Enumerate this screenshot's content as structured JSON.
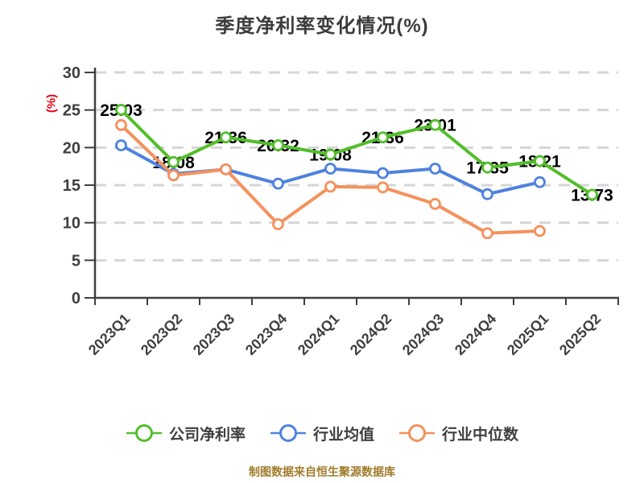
{
  "title": "季度净利率变化情况(%)",
  "y_axis_unit": "(%)",
  "footer": "制图数据来自恒生聚源数据库",
  "colors": {
    "title_text": "#3c3c3c",
    "axis": "#3f3f3f",
    "tick_label": "#3f3f3f",
    "gridline": "#d6d6d6",
    "unit_label": "#e60012",
    "data_label": "#000000",
    "footer_text": "#a07c2b",
    "marker_fill": "#ffffff"
  },
  "chart_data": {
    "type": "line",
    "title": "季度净利率变化情况(%)",
    "categories": [
      "2023Q1",
      "2023Q2",
      "2023Q3",
      "2023Q4",
      "2024Q1",
      "2024Q2",
      "2024Q3",
      "2024Q4",
      "2025Q1",
      "2025Q2"
    ],
    "series": [
      {
        "name": "公司净利率",
        "color": "#52be2b",
        "show_labels": true,
        "values": [
          25.03,
          18.08,
          21.36,
          20.32,
          19.08,
          21.36,
          23.01,
          17.35,
          18.21,
          13.73
        ],
        "labels": [
          "25.03",
          "18.08",
          "21.36",
          "20.32",
          "19.08",
          "21.36",
          "23.01",
          "17.35",
          "18.21",
          "13.73"
        ]
      },
      {
        "name": "行业均值",
        "color": "#4e82df",
        "show_labels": false,
        "values": [
          20.3,
          16.5,
          17.1,
          15.2,
          17.2,
          16.6,
          17.2,
          13.8,
          15.4,
          null
        ],
        "labels": []
      },
      {
        "name": "行业中位数",
        "color": "#f5915c",
        "show_labels": false,
        "values": [
          23.0,
          16.3,
          17.1,
          9.8,
          14.8,
          14.7,
          12.5,
          8.6,
          8.9,
          null
        ],
        "labels": []
      }
    ],
    "ylabel": "(%)",
    "ylim": [
      0,
      30
    ],
    "ytick_step": 5,
    "yticks": [
      0,
      5,
      10,
      15,
      20,
      25,
      30
    ],
    "grid": "dashed-horizontal",
    "legend_position": "bottom",
    "x_label_rotation": -45
  },
  "legend": {
    "items": [
      {
        "label": "公司净利率",
        "color": "#52be2b"
      },
      {
        "label": "行业均值",
        "color": "#4e82df"
      },
      {
        "label": "行业中位数",
        "color": "#f5915c"
      }
    ]
  }
}
